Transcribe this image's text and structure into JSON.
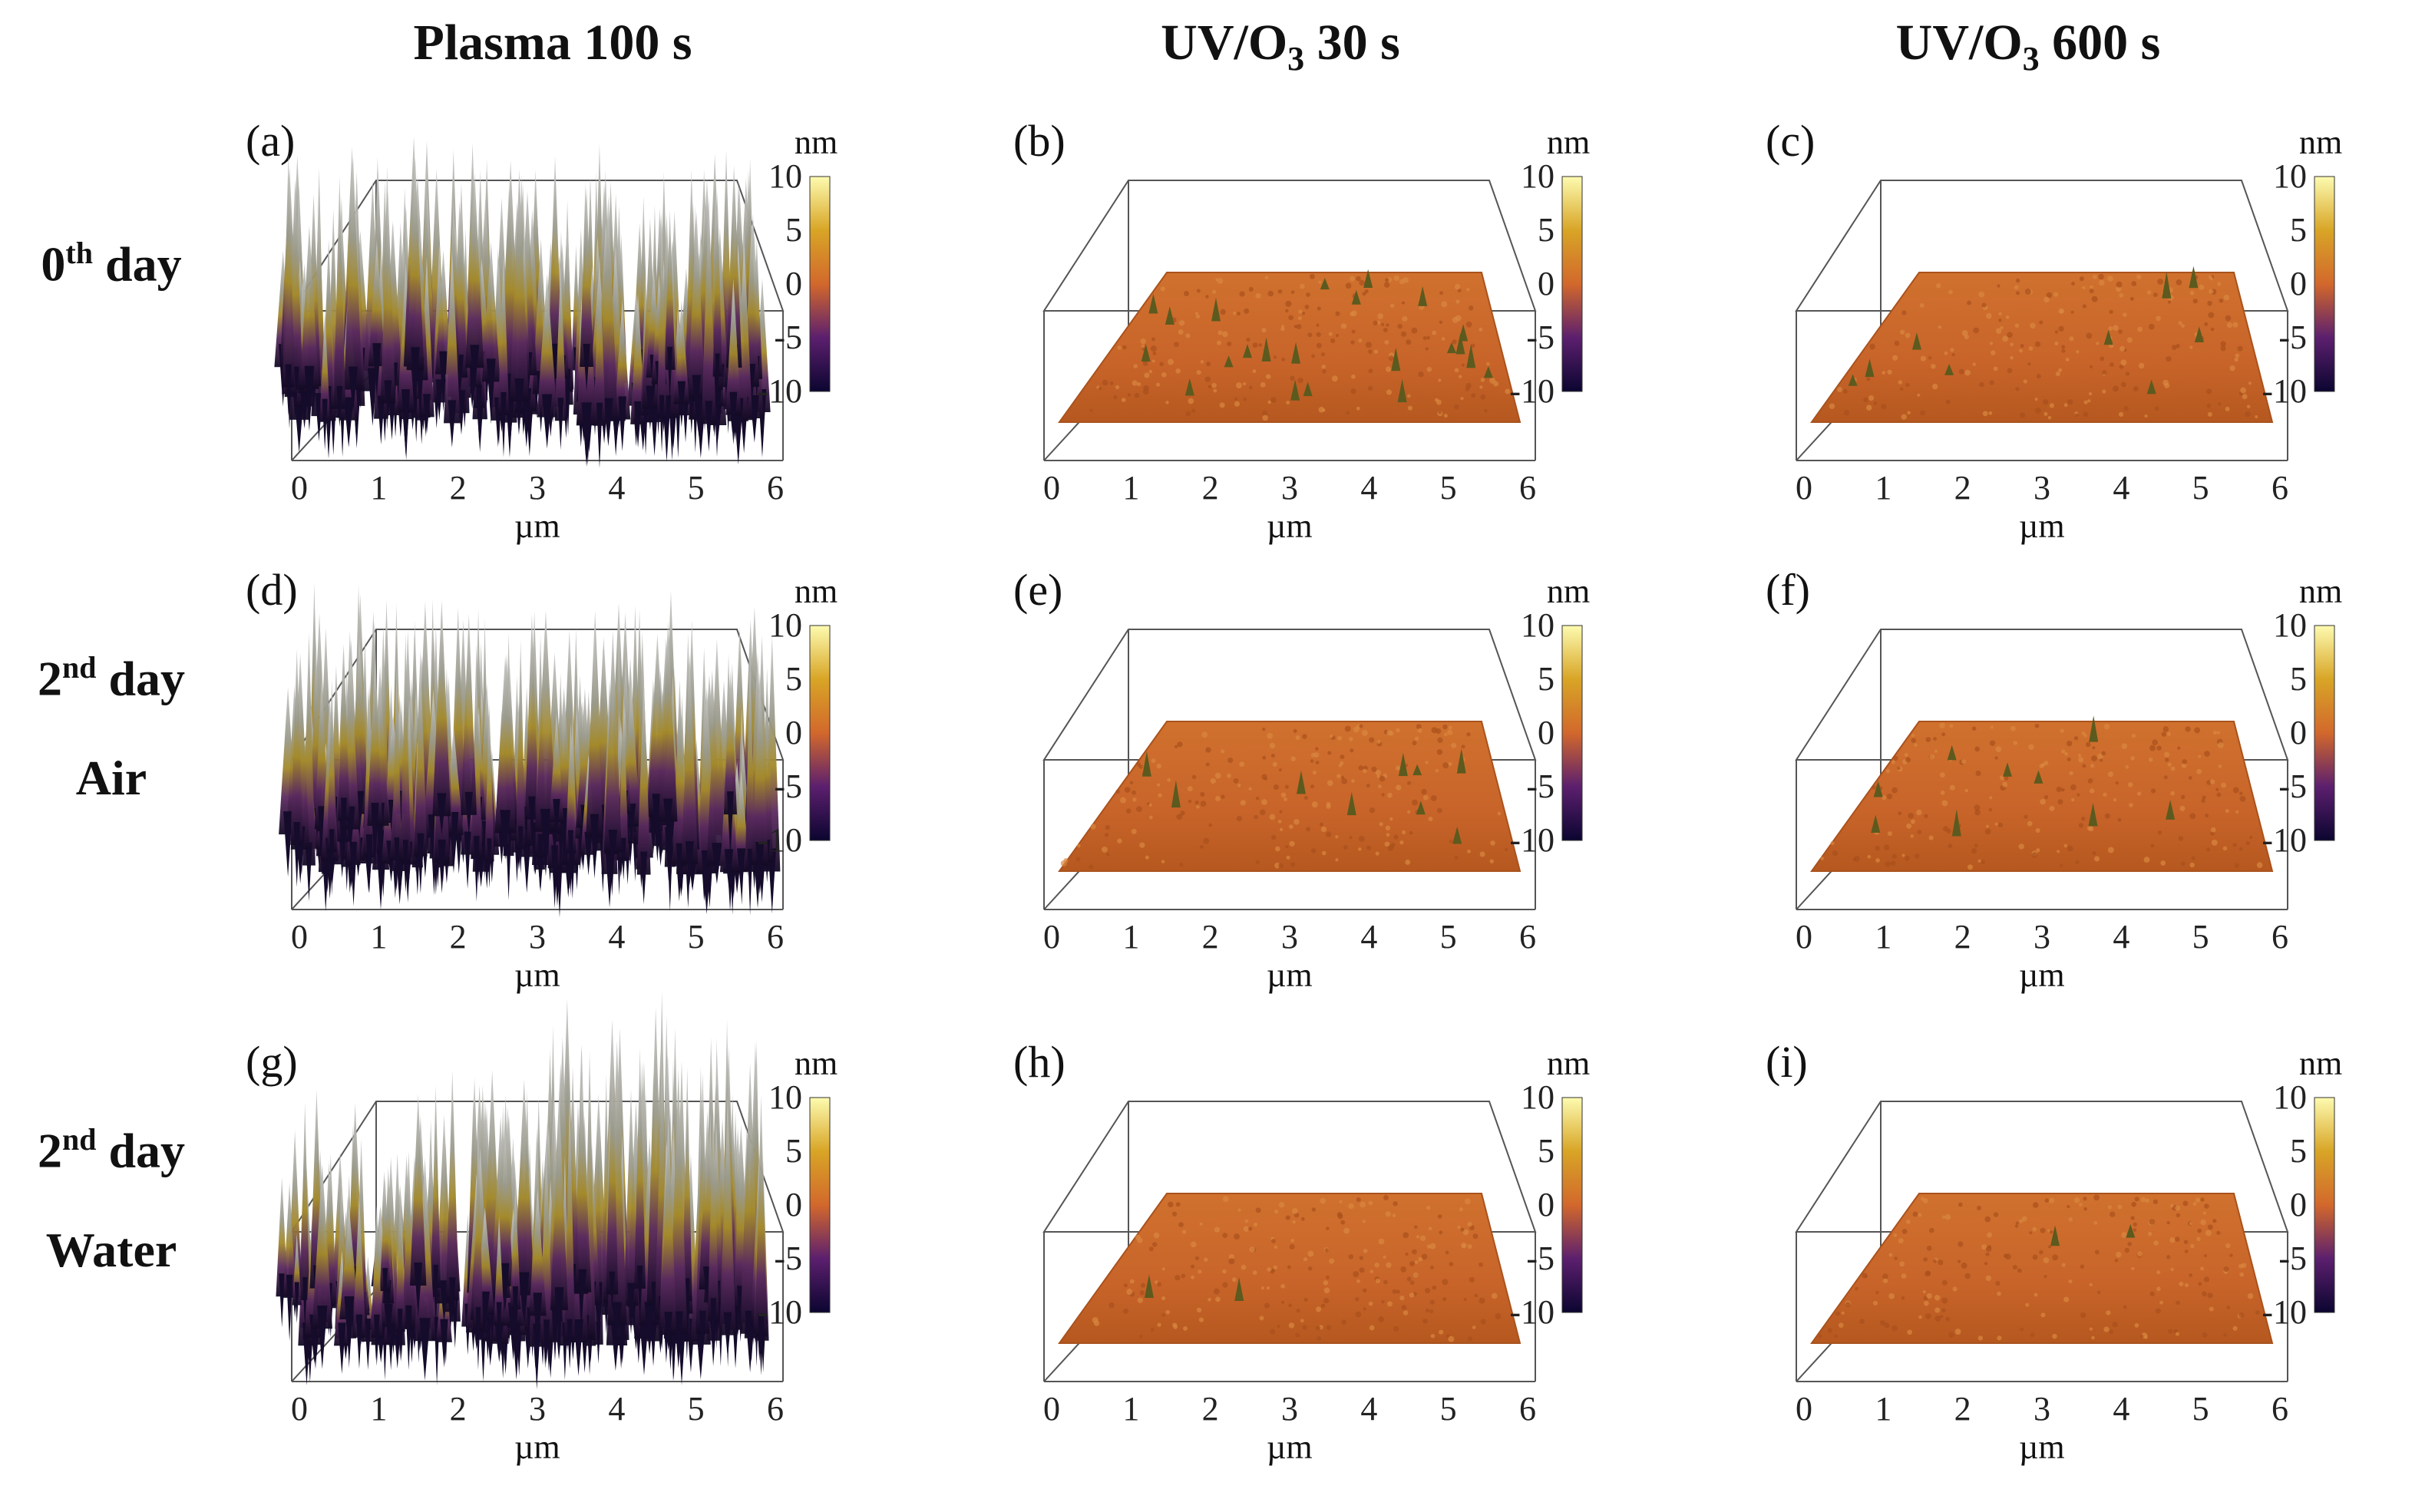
{
  "columns": [
    {
      "main": "Plasma 100 s",
      "pre": "",
      "sub": "",
      "post": ""
    },
    {
      "main": "",
      "pre": "UV/O",
      "sub": "3",
      "post": " 30 s"
    },
    {
      "main": "",
      "pre": "UV/O",
      "sub": "3",
      "post": " 600 s"
    }
  ],
  "rows": [
    {
      "num": "0",
      "sup": "th",
      "word": " day",
      "line2": ""
    },
    {
      "num": "2",
      "sup": "nd",
      "word": " day",
      "line2": "Air"
    },
    {
      "num": "2",
      "sup": "nd",
      "word": " day",
      "line2": "Water"
    }
  ],
  "panels": [
    {
      "label": "(a)",
      "type": "rough"
    },
    {
      "label": "(b)",
      "type": "flat-spikes"
    },
    {
      "label": "(c)",
      "type": "flat-few"
    },
    {
      "label": "(d)",
      "type": "rough"
    },
    {
      "label": "(e)",
      "type": "flat-few"
    },
    {
      "label": "(f)",
      "type": "flat-few"
    },
    {
      "label": "(g)",
      "type": "rough-right"
    },
    {
      "label": "(h)",
      "type": "flat"
    },
    {
      "label": "(i)",
      "type": "flat"
    }
  ],
  "x_ticks": [
    "0",
    "1",
    "2",
    "3",
    "4",
    "5",
    "6"
  ],
  "x_unit": "µm",
  "colorbar": {
    "unit": "nm",
    "ticks": [
      "10",
      "5",
      "0",
      "-5",
      "-10"
    ]
  },
  "colors": {
    "cb_top": "#fdfbb0",
    "cb_upper": "#d8a526",
    "cb_mid": "#d2682c",
    "cb_lower": "#5c1f6e",
    "cb_bottom": "#0b0530",
    "surface_flat": "#c8642a",
    "spike_gray": "#a9a9a9",
    "spike_gold": "#a48a2a"
  }
}
